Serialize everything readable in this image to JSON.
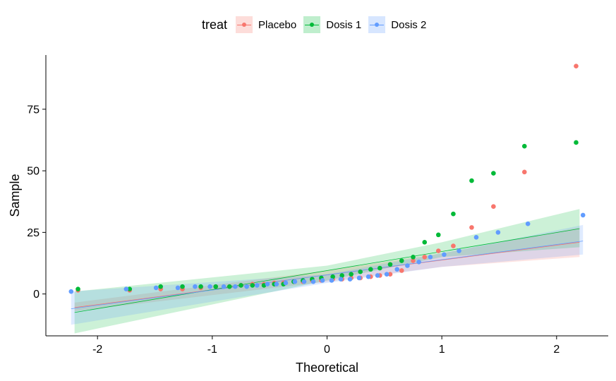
{
  "chart_data": {
    "type": "scatter",
    "title": "",
    "xlabel": "Theoretical",
    "ylabel": "Sample",
    "xlim": [
      -2.45,
      2.45
    ],
    "ylim": [
      -17,
      97
    ],
    "x_ticks": [
      -2,
      -1,
      0,
      1,
      2
    ],
    "x_tick_labels": [
      "-2",
      "-1",
      "0",
      "1",
      "2"
    ],
    "y_ticks": [
      0,
      25,
      50,
      75
    ],
    "y_tick_labels": [
      "0",
      "25",
      "50",
      "75"
    ],
    "grid": false,
    "legend": {
      "title": "treat",
      "position": "top",
      "entries": [
        "Placebo",
        "Dosis 1",
        "Dosis 2"
      ]
    },
    "series": [
      {
        "name": "Placebo",
        "color": "#F8766D",
        "points": [
          [
            -2.17,
            1.5
          ],
          [
            -1.72,
            1.5
          ],
          [
            -1.45,
            2
          ],
          [
            -1.26,
            2
          ],
          [
            -1.1,
            2.5
          ],
          [
            -0.97,
            3
          ],
          [
            -0.85,
            3
          ],
          [
            -0.75,
            3.5
          ],
          [
            -0.65,
            4
          ],
          [
            -0.55,
            4
          ],
          [
            -0.46,
            4.5
          ],
          [
            -0.38,
            4.5
          ],
          [
            -0.29,
            5
          ],
          [
            -0.21,
            5
          ],
          [
            -0.13,
            5.5
          ],
          [
            -0.05,
            5.5
          ],
          [
            0.05,
            6
          ],
          [
            0.13,
            6
          ],
          [
            0.21,
            6.5
          ],
          [
            0.29,
            6.5
          ],
          [
            0.38,
            7
          ],
          [
            0.46,
            7.5
          ],
          [
            0.55,
            8
          ],
          [
            0.65,
            9.5
          ],
          [
            0.75,
            13.5
          ],
          [
            0.85,
            15
          ],
          [
            0.97,
            17.5
          ],
          [
            1.1,
            19.5
          ],
          [
            1.26,
            27
          ],
          [
            1.45,
            35.5
          ],
          [
            1.72,
            49.5
          ],
          [
            2.17,
            92.5
          ]
        ],
        "ribbon_lower": [
          [
            -2.2,
            -7
          ],
          [
            0,
            5
          ],
          [
            1,
            11
          ],
          [
            2.2,
            15
          ]
        ],
        "ribbon_upper": [
          [
            -2.2,
            -3.5
          ],
          [
            0,
            9.5
          ],
          [
            1,
            16.5
          ],
          [
            2.2,
            27
          ]
        ],
        "line": [
          [
            -2.2,
            -5.5
          ],
          [
            2.2,
            21
          ]
        ]
      },
      {
        "name": "Dosis 1",
        "color": "#00BA38",
        "points": [
          [
            -2.17,
            2
          ],
          [
            -1.72,
            2
          ],
          [
            -1.45,
            3
          ],
          [
            -1.26,
            3
          ],
          [
            -1.1,
            3
          ],
          [
            -0.97,
            3
          ],
          [
            -0.85,
            3
          ],
          [
            -0.75,
            3.5
          ],
          [
            -0.65,
            3.5
          ],
          [
            -0.55,
            3.5
          ],
          [
            -0.46,
            4
          ],
          [
            -0.38,
            4
          ],
          [
            -0.29,
            5
          ],
          [
            -0.21,
            5.5
          ],
          [
            -0.13,
            6
          ],
          [
            -0.05,
            6.5
          ],
          [
            0.05,
            7
          ],
          [
            0.13,
            7.5
          ],
          [
            0.21,
            8
          ],
          [
            0.29,
            9
          ],
          [
            0.38,
            10
          ],
          [
            0.46,
            10.5
          ],
          [
            0.55,
            12
          ],
          [
            0.65,
            13.5
          ],
          [
            0.75,
            15
          ],
          [
            0.85,
            21
          ],
          [
            0.97,
            24
          ],
          [
            1.1,
            32.5
          ],
          [
            1.26,
            46
          ],
          [
            1.45,
            49
          ],
          [
            1.72,
            60
          ],
          [
            2.17,
            61.5
          ]
        ],
        "ribbon_lower": [
          [
            -2.2,
            -16
          ],
          [
            0,
            5.5
          ],
          [
            1,
            15
          ],
          [
            2.2,
            19
          ]
        ],
        "ribbon_upper": [
          [
            -2.2,
            1
          ],
          [
            0,
            11.5
          ],
          [
            1,
            21
          ],
          [
            2.2,
            34.5
          ]
        ],
        "line": [
          [
            -2.2,
            -7.5
          ],
          [
            2.2,
            26.5
          ]
        ]
      },
      {
        "name": "Dosis 2",
        "color": "#619CFF",
        "points": [
          [
            -2.23,
            1
          ],
          [
            -1.75,
            2
          ],
          [
            -1.49,
            2.5
          ],
          [
            -1.3,
            2.5
          ],
          [
            -1.15,
            3
          ],
          [
            -1.02,
            3
          ],
          [
            -0.9,
            3
          ],
          [
            -0.8,
            3
          ],
          [
            -0.7,
            3
          ],
          [
            -0.61,
            3.5
          ],
          [
            -0.52,
            4
          ],
          [
            -0.44,
            4
          ],
          [
            -0.36,
            4.5
          ],
          [
            -0.28,
            5
          ],
          [
            -0.2,
            5
          ],
          [
            -0.12,
            5
          ],
          [
            -0.04,
            5.5
          ],
          [
            0.04,
            5.5
          ],
          [
            0.12,
            6
          ],
          [
            0.2,
            6
          ],
          [
            0.28,
            6.5
          ],
          [
            0.36,
            7
          ],
          [
            0.44,
            7.5
          ],
          [
            0.52,
            8
          ],
          [
            0.61,
            10
          ],
          [
            0.7,
            11.5
          ],
          [
            0.8,
            13
          ],
          [
            0.9,
            15
          ],
          [
            1.02,
            16
          ],
          [
            1.15,
            17.5
          ],
          [
            1.3,
            23
          ],
          [
            1.49,
            25
          ],
          [
            1.75,
            28.5
          ],
          [
            2.23,
            32
          ]
        ],
        "ribbon_lower": [
          [
            -2.23,
            -12.5
          ],
          [
            0,
            4.5
          ],
          [
            1,
            11
          ],
          [
            2.23,
            16
          ]
        ],
        "ribbon_upper": [
          [
            -2.23,
            1
          ],
          [
            0,
            8
          ],
          [
            1,
            16.5
          ],
          [
            2.23,
            28
          ]
        ],
        "line": [
          [
            -2.23,
            -6
          ],
          [
            2.23,
            21.5
          ]
        ]
      }
    ]
  }
}
